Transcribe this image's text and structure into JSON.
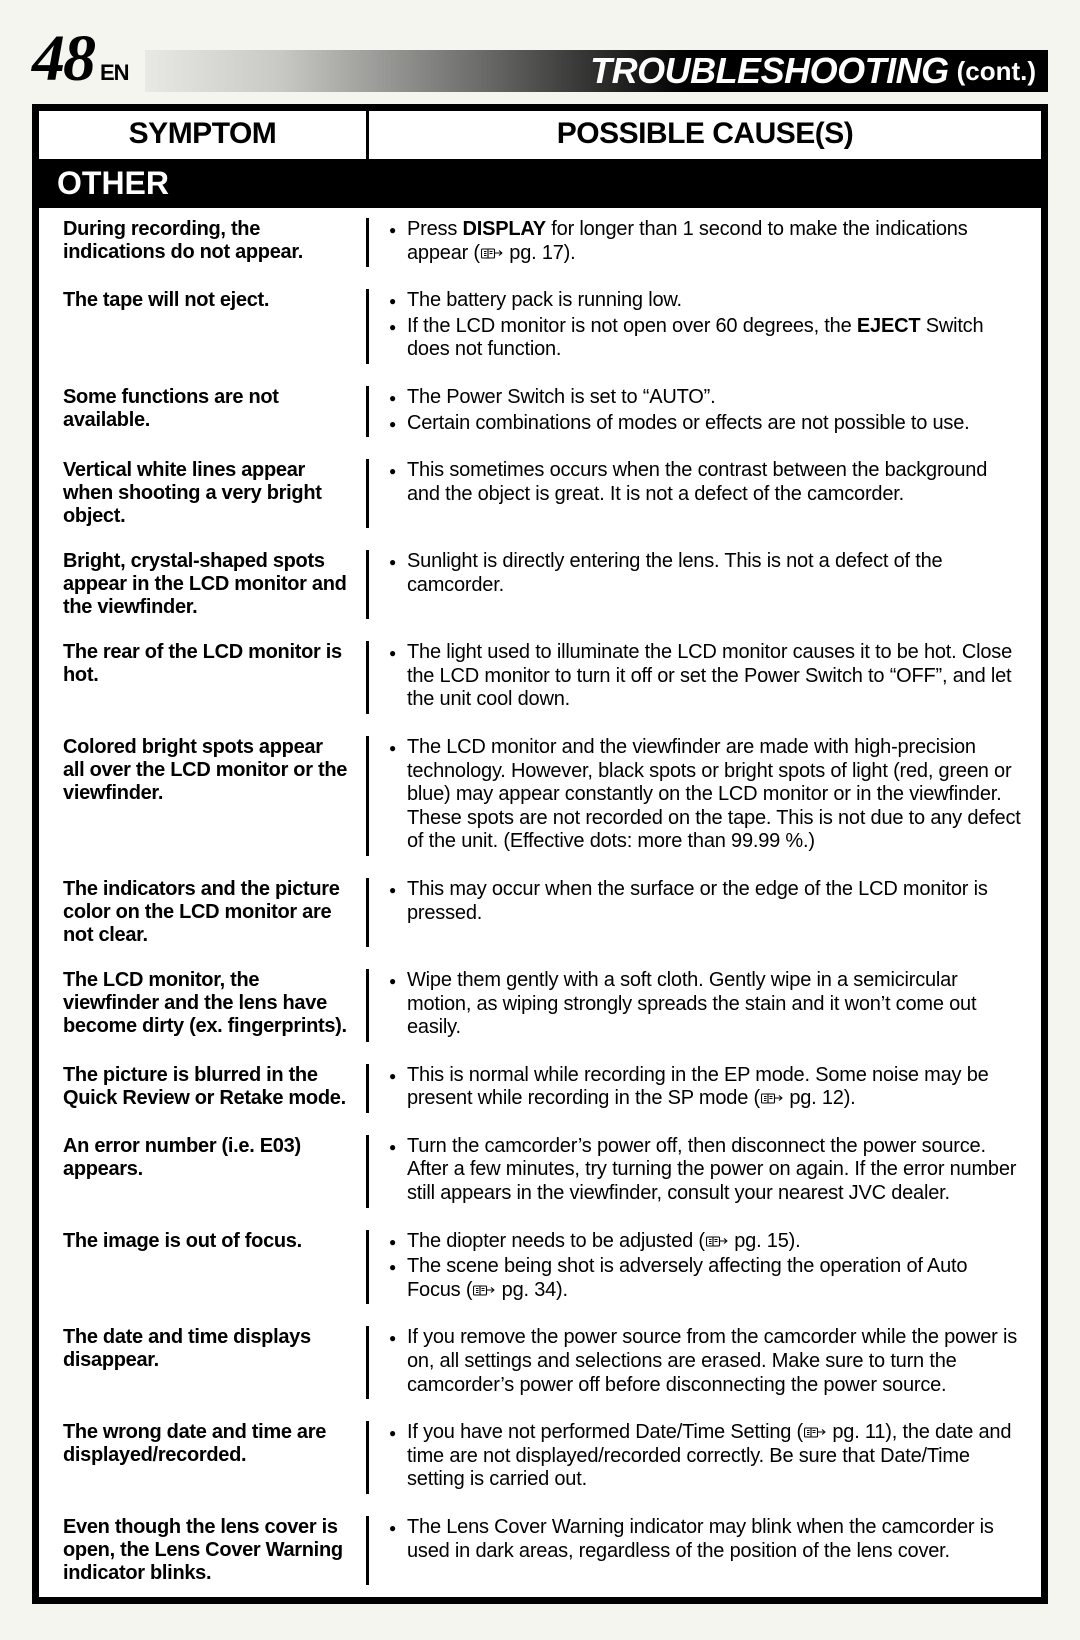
{
  "page_number": "48",
  "lang_code": "EN",
  "header_title": "TROUBLESHOOTING",
  "header_cont": "(cont.)",
  "col_symptom": "SYMPTOM",
  "col_cause": "POSSIBLE CAUSE(S)",
  "section_label": "OTHER",
  "rows": [
    {
      "symptom": "During recording, the indications do not appear.",
      "causes": [
        {
          "pre": "Press ",
          "bold": "DISPLAY",
          "post": " for longer than 1 second to make the indications appear (",
          "ref": "pg. 17",
          "tail": ")."
        }
      ]
    },
    {
      "symptom": "The tape will not eject.",
      "causes": [
        {
          "text": "The battery pack is running low."
        },
        {
          "pre": "If the LCD monitor is not open over 60 degrees, the ",
          "bold": "EJECT",
          "post": " Switch does not function."
        }
      ]
    },
    {
      "symptom": "Some functions are not available.",
      "causes": [
        {
          "text": "The Power Switch is set to “AUTO”."
        },
        {
          "text": "Certain combinations of modes or effects are not possible to use."
        }
      ]
    },
    {
      "symptom": "Vertical white lines appear when shooting a very bright object.",
      "causes": [
        {
          "text": "This sometimes occurs when the contrast between the background and the object is great. It is not a defect of the camcorder."
        }
      ]
    },
    {
      "symptom": "Bright, crystal-shaped spots appear in the LCD monitor and the viewfinder.",
      "causes": [
        {
          "text": "Sunlight is directly entering the lens. This is not a defect of the camcorder."
        }
      ]
    },
    {
      "symptom": "The rear of the LCD monitor is hot.",
      "causes": [
        {
          "text": "The light used to illuminate the LCD monitor causes it to be hot. Close the LCD monitor to turn it off or set the Power Switch to “OFF”, and let the unit cool down."
        }
      ]
    },
    {
      "symptom": "Colored bright spots appear all over the LCD monitor or the viewfinder.",
      "causes": [
        {
          "text": "The LCD monitor and the viewfinder are made with high-precision technology. However, black spots or bright spots of light (red, green or blue) may appear constantly on the LCD monitor or in the viewfinder. These spots are not recorded on the tape. This is not due to any defect of the unit. (Effective dots: more than 99.99 %.)"
        }
      ]
    },
    {
      "symptom": "The indicators and the picture color on the LCD monitor are not clear.",
      "causes": [
        {
          "text": "This may occur when the surface or the edge of the LCD monitor is pressed."
        }
      ]
    },
    {
      "symptom": "The LCD monitor, the viewfinder and the lens have become dirty (ex. fingerprints).",
      "causes": [
        {
          "text": "Wipe them gently with a soft cloth. Gently wipe in a semicircular motion, as wiping strongly spreads the stain and it won’t come out easily."
        }
      ]
    },
    {
      "symptom": "The picture is blurred in the Quick Review or Retake mode.",
      "causes": [
        {
          "pre": "This is normal while recording in the EP mode. Some noise may be present while recording in the SP mode (",
          "ref": "pg. 12",
          "tail": ")."
        }
      ]
    },
    {
      "symptom": "An error number (i.e. E03) appears.",
      "causes": [
        {
          "text": "Turn the camcorder’s power off, then disconnect the power source. After a few minutes, try turning the power on again. If the error number still appears in the viewfinder, consult your nearest JVC dealer."
        }
      ]
    },
    {
      "symptom": "The image is out of focus.",
      "causes": [
        {
          "pre": "The diopter needs to be adjusted (",
          "ref": "pg. 15",
          "tail": ")."
        },
        {
          "pre": "The scene being shot is adversely affecting the operation of Auto Focus (",
          "ref": "pg. 34",
          "tail": ")."
        }
      ]
    },
    {
      "symptom": "The date and time displays disappear.",
      "causes": [
        {
          "text": "If you remove the power source from the camcorder while the power is on, all settings and selections are erased. Make sure to turn the camcorder’s power off before disconnecting the power source."
        }
      ]
    },
    {
      "symptom": "The wrong date and time are displayed/recorded.",
      "causes": [
        {
          "pre": "If you have not performed Date/Time Setting (",
          "ref": "pg. 11",
          "tail": "), the date and time are not displayed/recorded correctly. Be sure that Date/Time setting is carried out."
        }
      ]
    },
    {
      "symptom": "Even though the lens cover is open, the Lens Cover Warning indicator blinks.",
      "causes": [
        {
          "text": "The Lens Cover Warning indicator may blink when the camcorder is used in dark areas, regardless of the position of the lens cover."
        }
      ]
    }
  ]
}
